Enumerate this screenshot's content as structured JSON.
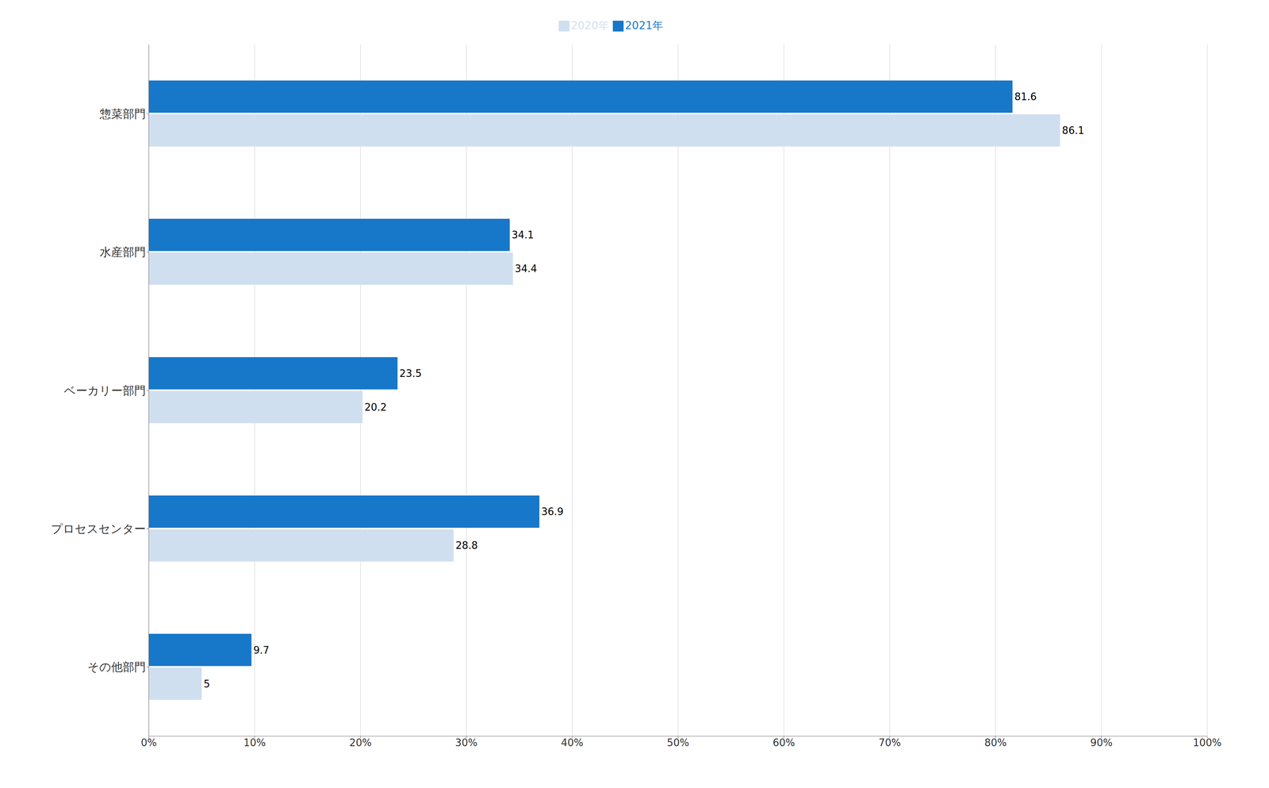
{
  "chart_data": {
    "type": "bar",
    "orientation": "horizontal",
    "categories": [
      "惣菜部門",
      "水産部門",
      "ベーカリー部門",
      "プロセスセンター",
      "その他部門"
    ],
    "series": [
      {
        "name": "2021年",
        "color": "#1777C8",
        "values": [
          81.6,
          34.1,
          23.5,
          36.9,
          9.7
        ]
      },
      {
        "name": "2020年",
        "color": "#D0DFF0",
        "values": [
          86.1,
          34.4,
          20.2,
          28.8,
          5.0
        ]
      }
    ],
    "xlim": [
      0,
      100
    ],
    "xticks": [
      {
        "value": 0,
        "label": "0%"
      },
      {
        "value": 10,
        "label": "10%"
      },
      {
        "value": 20,
        "label": "20%"
      },
      {
        "value": 30,
        "label": "30%"
      },
      {
        "value": 40,
        "label": "40%"
      },
      {
        "value": 50,
        "label": "50%"
      },
      {
        "value": 60,
        "label": "60%"
      },
      {
        "value": 70,
        "label": "70%"
      },
      {
        "value": 80,
        "label": "80%"
      },
      {
        "value": 90,
        "label": "90%"
      },
      {
        "value": 100,
        "label": "100%"
      }
    ],
    "grid": true,
    "legend": "top",
    "data_labels": true
  }
}
